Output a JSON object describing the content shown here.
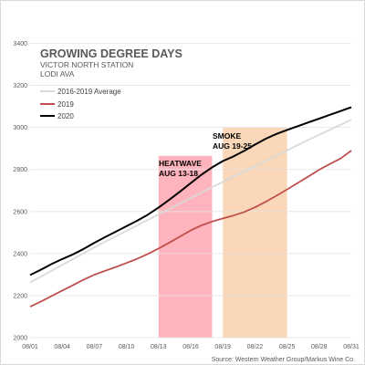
{
  "chart_data": {
    "type": "line",
    "title": "GROWING DEGREE DAYS",
    "subtitle_lines": [
      "VICTOR NORTH STATION",
      "LODI AVA"
    ],
    "source": "Source: Western Weather Group/Markus Wine Co.",
    "x_ticks": [
      "08/01",
      "08/04",
      "08/07",
      "08/10",
      "08/13",
      "08/16",
      "08/19",
      "08/22",
      "08/25",
      "08/28",
      "08/31"
    ],
    "y_ticks": [
      "2000",
      "2200",
      "2400",
      "2600",
      "2800",
      "3000",
      "3200",
      "3400"
    ],
    "ylim": [
      2000,
      3450
    ],
    "xlim": [
      1,
      31
    ],
    "grid": "horizontal",
    "legend_position": "top-left",
    "x": [
      1,
      2,
      3,
      4,
      5,
      6,
      7,
      8,
      9,
      10,
      11,
      12,
      13,
      14,
      15,
      16,
      17,
      18,
      19,
      20,
      21,
      22,
      23,
      24,
      25,
      26,
      27,
      28,
      29,
      30,
      31
    ],
    "series": [
      {
        "name": "2016-2019 Average",
        "color": "#d9d9d9",
        "values": [
          2262,
          2290,
          2318,
          2346,
          2374,
          2402,
          2429,
          2456,
          2482,
          2508,
          2534,
          2560,
          2586,
          2612,
          2638,
          2664,
          2690,
          2716,
          2741,
          2766,
          2791,
          2816,
          2841,
          2866,
          2891,
          2916,
          2941,
          2965,
          2989,
          3013,
          3037
        ]
      },
      {
        "name": "2019",
        "color": "#c0504d",
        "values": [
          2147,
          2171,
          2198,
          2224,
          2249,
          2276,
          2299,
          2318,
          2336,
          2355,
          2375,
          2398,
          2424,
          2452,
          2481,
          2510,
          2534,
          2552,
          2567,
          2581,
          2598,
          2620,
          2646,
          2675,
          2705,
          2736,
          2767,
          2799,
          2826,
          2852,
          2890
        ]
      },
      {
        "name": "2020",
        "color": "#000000",
        "values": [
          2298,
          2323,
          2350,
          2374,
          2396,
          2422,
          2451,
          2478,
          2504,
          2530,
          2556,
          2585,
          2619,
          2656,
          2695,
          2735,
          2775,
          2810,
          2840,
          2862,
          2889,
          2918,
          2946,
          2969,
          2988,
          3006,
          3024,
          3042,
          3060,
          3078,
          3096
        ]
      }
    ],
    "bands": [
      {
        "label_lines": [
          "HEATWAVE",
          "AUG 13-18"
        ],
        "start": 13,
        "end": 18,
        "color": "#ffb3bc"
      },
      {
        "label_lines": [
          "SMOKE",
          "AUG 19-25"
        ],
        "start": 19,
        "end": 25,
        "color": "#fad7b8"
      }
    ]
  }
}
